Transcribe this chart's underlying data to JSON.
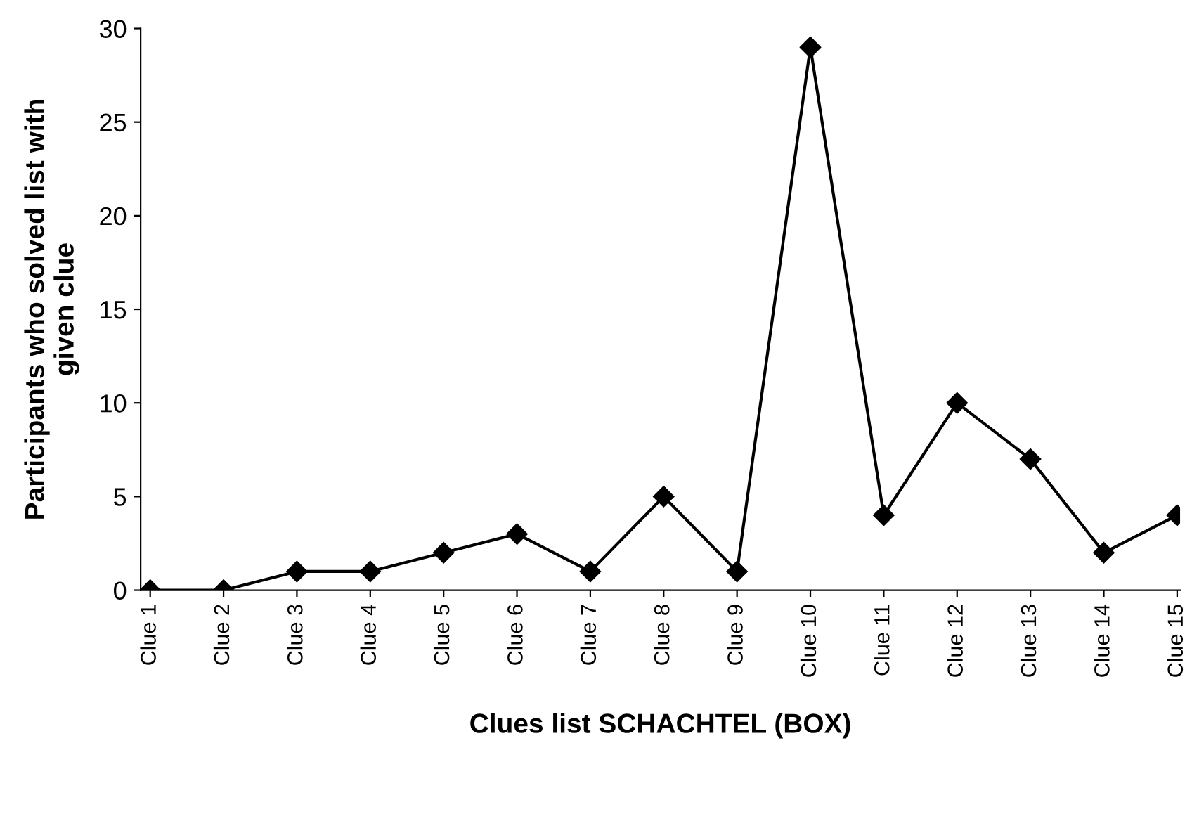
{
  "chart_data": {
    "type": "line",
    "xlabel": "Clues list SCHACHTEL (BOX)",
    "ylabel": "Participants who solved list with\ngiven clue",
    "categories": [
      "Clue 1",
      "Clue 2",
      "Clue 3",
      "Clue 4",
      "Clue 5",
      "Clue 6",
      "Clue 7",
      "Clue 8",
      "Clue 9",
      "Clue 10",
      "Clue 11",
      "Clue 12",
      "Clue 13",
      "Clue 14",
      "Clue 15"
    ],
    "series": [
      {
        "color": "#000000",
        "values": [
          0,
          0,
          1,
          1,
          2,
          3,
          1,
          5,
          1,
          29,
          4,
          10,
          7,
          2,
          4
        ]
      }
    ],
    "ylim": [
      0,
      30
    ],
    "yticks": [
      0,
      5,
      10,
      15,
      20,
      25,
      30
    ],
    "marker": "diamond",
    "line_style": "solid",
    "grid": false,
    "legend": false
  }
}
